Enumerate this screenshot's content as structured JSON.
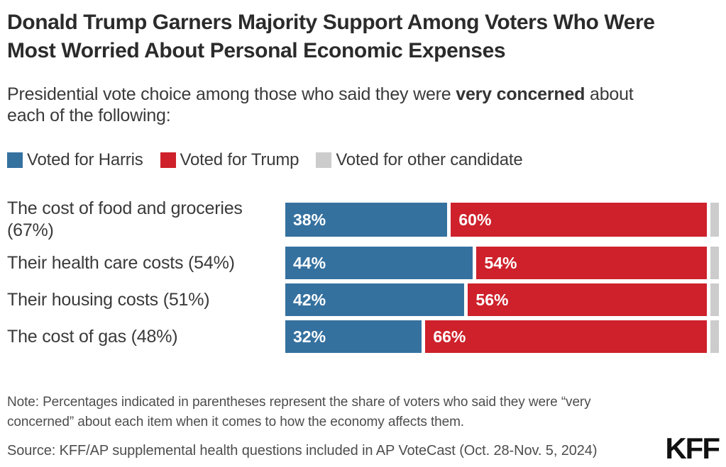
{
  "title": "Donald Trump Garners Majority Support Among Voters Who Were Most Worried About Personal Economic Expenses",
  "subtitle": {
    "before": "Presidential vote choice among those who said they were ",
    "bold": "very concerned",
    "after": " about each of the following:"
  },
  "legend": [
    {
      "label": "Voted for Harris",
      "color": "#35719F"
    },
    {
      "label": "Voted for Trump",
      "color": "#CE212B"
    },
    {
      "label": "Voted for other candidate",
      "color": "#CCCCCC"
    }
  ],
  "chart_data": {
    "type": "bar",
    "subtype": "horizontal-stacked",
    "categories": [
      "The cost of food and groceries (67%)",
      "Their health care costs (54%)",
      "Their housing costs (51%)",
      "The cost of gas (48%)"
    ],
    "series": [
      {
        "name": "Voted for Harris",
        "color": "#35719F",
        "values": [
          38,
          44,
          42,
          32
        ],
        "show_labels": true
      },
      {
        "name": "Voted for Trump",
        "color": "#CE212B",
        "values": [
          60,
          54,
          56,
          66
        ],
        "show_labels": true
      },
      {
        "name": "Voted for other candidate",
        "color": "#CCCCCC",
        "values": [
          2,
          2,
          2,
          2
        ],
        "show_labels": false
      }
    ],
    "value_suffix": "%",
    "xlim": [
      0,
      100
    ],
    "grid": false,
    "legend_position": "top"
  },
  "note": "Note: Percentages indicated in parentheses represent the share of voters who said they were “very concerned” about each item when it comes to how the economy affects them.",
  "source": "Source: KFF/AP supplemental health questions included in AP VoteCast (Oct. 28-Nov. 5, 2024)",
  "logo": "KFF",
  "colors": {
    "harris_blue": "#35719F",
    "trump_red": "#CE212B",
    "other_gray": "#CCCCCC",
    "title_text": "#2b2b2b",
    "body_text": "#3a3a3a",
    "note_text": "#4d4d4d"
  }
}
